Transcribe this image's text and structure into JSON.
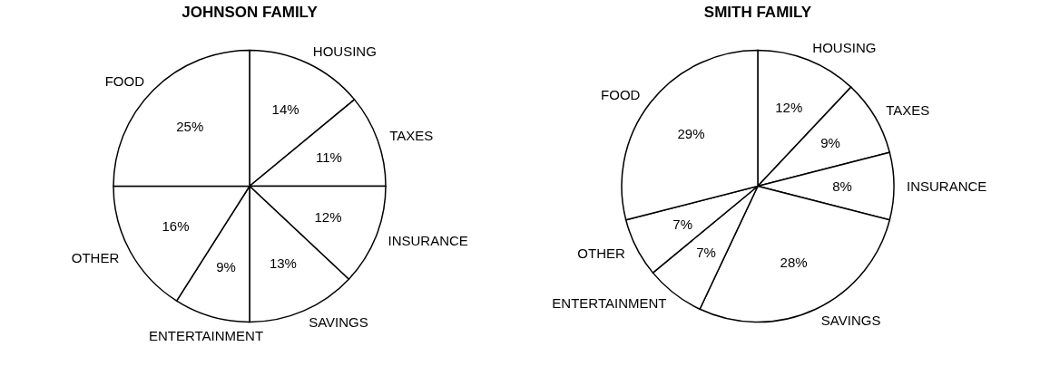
{
  "chart_data": [
    {
      "type": "pie",
      "title": "JOHNSON FAMILY",
      "categories": [
        "HOUSING",
        "TAXES",
        "INSURANCE",
        "SAVINGS",
        "ENTERTAINMENT",
        "OTHER",
        "FOOD"
      ],
      "values": [
        14,
        11,
        12,
        13,
        9,
        16,
        25
      ],
      "value_labels": [
        "14%",
        "11%",
        "12%",
        "13%",
        "9%",
        "16%",
        "25%"
      ],
      "colors": [
        "#ffffff",
        "#ffffff",
        "#ffffff",
        "#ffffff",
        "#ffffff",
        "#ffffff",
        "#ffffff"
      ],
      "legend": false
    },
    {
      "type": "pie",
      "title": "SMITH FAMILY",
      "categories": [
        "HOUSING",
        "TAXES",
        "INSURANCE",
        "SAVINGS",
        "ENTERTAINMENT",
        "OTHER",
        "FOOD"
      ],
      "values": [
        12,
        9,
        8,
        28,
        7,
        7,
        29
      ],
      "value_labels": [
        "12%",
        "9%",
        "8%",
        "28%",
        "7%",
        "7%",
        "29%"
      ],
      "colors": [
        "#ffffff",
        "#ffffff",
        "#ffffff",
        "#ffffff",
        "#ffffff",
        "#ffffff",
        "#ffffff"
      ],
      "legend": false
    }
  ]
}
